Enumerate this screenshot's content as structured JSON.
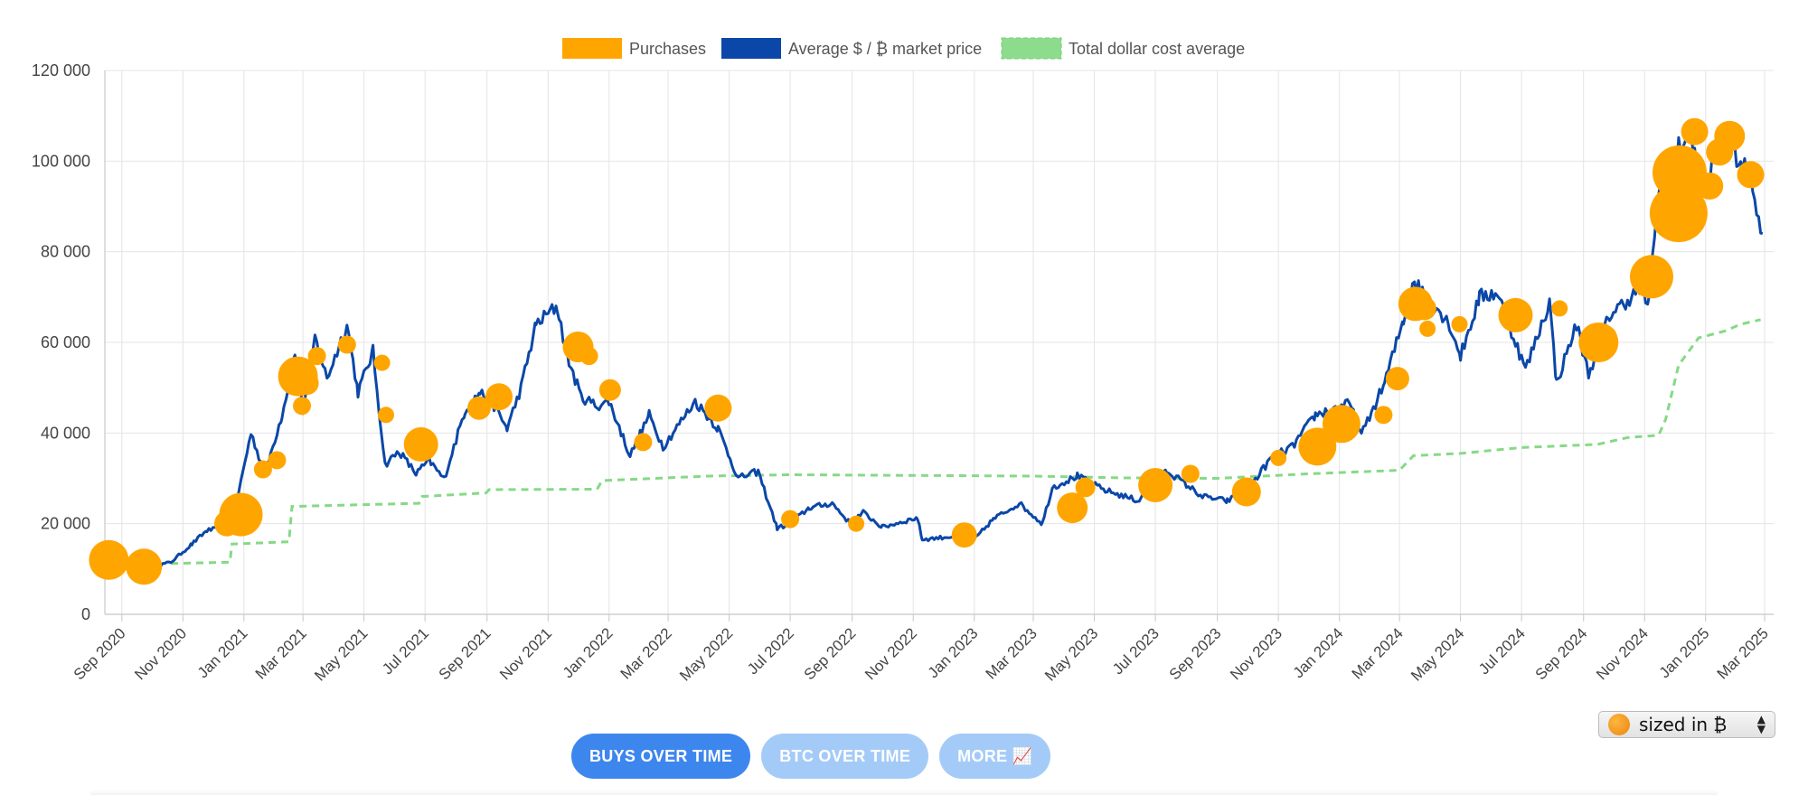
{
  "chart_data": {
    "type": "line",
    "title": "",
    "xlabel": "",
    "ylabel": "",
    "x_range": [
      "2020-08-15",
      "2025-03-10"
    ],
    "ylim": [
      0,
      120000
    ],
    "y_ticks": [
      0,
      20000,
      40000,
      60000,
      80000,
      100000,
      120000
    ],
    "y_tick_labels": [
      "0",
      "20 000",
      "40 000",
      "60 000",
      "80 000",
      "100 000",
      "120 000"
    ],
    "x_ticks": [
      "2020-09-01",
      "2020-11-01",
      "2021-01-01",
      "2021-03-01",
      "2021-05-01",
      "2021-07-01",
      "2021-09-01",
      "2021-11-01",
      "2022-01-01",
      "2022-03-01",
      "2022-05-01",
      "2022-07-01",
      "2022-09-01",
      "2022-11-01",
      "2023-01-01",
      "2023-03-01",
      "2023-05-01",
      "2023-07-01",
      "2023-09-01",
      "2023-11-01",
      "2024-01-01",
      "2024-03-01",
      "2024-05-01",
      "2024-07-01",
      "2024-09-01",
      "2024-11-01",
      "2025-01-01",
      "2025-03-01"
    ],
    "x_tick_labels": [
      "Sep 2020",
      "Nov 2020",
      "Jan 2021",
      "Mar 2021",
      "May 2021",
      "Jul 2021",
      "Sep 2021",
      "Nov 2021",
      "Jan 2022",
      "Mar 2022",
      "May 2022",
      "Jul 2022",
      "Sep 2022",
      "Nov 2022",
      "Jan 2023",
      "Mar 2023",
      "May 2023",
      "Jul 2023",
      "Sep 2023",
      "Nov 2023",
      "Jan 2024",
      "Mar 2024",
      "May 2024",
      "Jul 2024",
      "Sep 2024",
      "Nov 2024",
      "Jan 2025",
      "Mar 2025"
    ],
    "grid": true,
    "legend_position": "top-center",
    "series": [
      {
        "name": "Average $ / ₿ market price",
        "kind": "line",
        "color": "#0a47a8",
        "points": [
          [
            "2020-09-30",
            10500
          ],
          [
            "2020-10-20",
            11500
          ],
          [
            "2020-11-10",
            15500
          ],
          [
            "2020-11-25",
            18500
          ],
          [
            "2020-12-10",
            19000
          ],
          [
            "2020-12-25",
            25000
          ],
          [
            "2021-01-08",
            40000
          ],
          [
            "2021-01-22",
            31000
          ],
          [
            "2021-02-08",
            44000
          ],
          [
            "2021-02-21",
            57000
          ],
          [
            "2021-03-01",
            45000
          ],
          [
            "2021-03-13",
            61000
          ],
          [
            "2021-03-25",
            52000
          ],
          [
            "2021-04-14",
            64000
          ],
          [
            "2021-04-25",
            49000
          ],
          [
            "2021-05-10",
            58000
          ],
          [
            "2021-05-22",
            33000
          ],
          [
            "2021-06-05",
            36000
          ],
          [
            "2021-06-22",
            31000
          ],
          [
            "2021-07-05",
            34000
          ],
          [
            "2021-07-20",
            29800
          ],
          [
            "2021-08-10",
            45000
          ],
          [
            "2021-08-25",
            49000
          ],
          [
            "2021-09-08",
            46000
          ],
          [
            "2021-09-21",
            41000
          ],
          [
            "2021-10-05",
            50000
          ],
          [
            "2021-10-20",
            64000
          ],
          [
            "2021-11-10",
            68000
          ],
          [
            "2021-11-20",
            57000
          ],
          [
            "2021-12-04",
            48000
          ],
          [
            "2021-12-20",
            46000
          ],
          [
            "2022-01-01",
            47000
          ],
          [
            "2022-01-22",
            35000
          ],
          [
            "2022-02-10",
            44000
          ],
          [
            "2022-02-24",
            37000
          ],
          [
            "2022-03-28",
            47000
          ],
          [
            "2022-04-20",
            41000
          ],
          [
            "2022-05-10",
            30000
          ],
          [
            "2022-05-30",
            31500
          ],
          [
            "2022-06-18",
            19000
          ],
          [
            "2022-07-01",
            20000
          ],
          [
            "2022-07-20",
            23500
          ],
          [
            "2022-08-12",
            24500
          ],
          [
            "2022-08-30",
            20000
          ],
          [
            "2022-09-12",
            22500
          ],
          [
            "2022-10-01",
            19200
          ],
          [
            "2022-11-05",
            21300
          ],
          [
            "2022-11-10",
            16500
          ],
          [
            "2022-12-15",
            17300
          ],
          [
            "2023-01-01",
            16500
          ],
          [
            "2023-01-20",
            21000
          ],
          [
            "2023-02-15",
            24500
          ],
          [
            "2023-03-10",
            20000
          ],
          [
            "2023-03-20",
            28000
          ],
          [
            "2023-04-14",
            30500
          ],
          [
            "2023-05-10",
            27500
          ],
          [
            "2023-06-15",
            25000
          ],
          [
            "2023-06-25",
            30500
          ],
          [
            "2023-07-14",
            31500
          ],
          [
            "2023-08-17",
            26000
          ],
          [
            "2023-09-11",
            25000
          ],
          [
            "2023-10-01",
            27500
          ],
          [
            "2023-10-25",
            34500
          ],
          [
            "2023-11-15",
            37000
          ],
          [
            "2023-12-08",
            44000
          ],
          [
            "2024-01-11",
            46500
          ],
          [
            "2024-01-23",
            39500
          ],
          [
            "2024-02-15",
            51000
          ],
          [
            "2024-03-05",
            65000
          ],
          [
            "2024-03-14",
            73500
          ],
          [
            "2024-04-01",
            69500
          ],
          [
            "2024-04-20",
            64000
          ],
          [
            "2024-05-01",
            57000
          ],
          [
            "2024-05-20",
            70000
          ],
          [
            "2024-06-07",
            71000
          ],
          [
            "2024-07-05",
            54000
          ],
          [
            "2024-07-29",
            69000
          ],
          [
            "2024-08-05",
            51000
          ],
          [
            "2024-08-25",
            64000
          ],
          [
            "2024-09-06",
            53000
          ],
          [
            "2024-09-27",
            66000
          ],
          [
            "2024-10-29",
            72000
          ],
          [
            "2024-11-05",
            68000
          ],
          [
            "2024-11-13",
            90000
          ],
          [
            "2024-11-22",
            99000
          ],
          [
            "2024-12-05",
            103000
          ],
          [
            "2024-12-17",
            107000
          ],
          [
            "2024-12-30",
            93000
          ],
          [
            "2025-01-20",
            106000
          ],
          [
            "2025-02-01",
            101000
          ],
          [
            "2025-02-15",
            96000
          ],
          [
            "2025-02-27",
            84000
          ]
        ]
      },
      {
        "name": "Total dollar cost average",
        "kind": "dashed-line",
        "color": "#86d986",
        "points": [
          [
            "2020-10-20",
            11200
          ],
          [
            "2020-12-18",
            11500
          ],
          [
            "2020-12-20",
            15500
          ],
          [
            "2021-02-15",
            16000
          ],
          [
            "2021-02-18",
            23800
          ],
          [
            "2021-06-25",
            24500
          ],
          [
            "2021-06-28",
            26000
          ],
          [
            "2021-08-31",
            26800
          ],
          [
            "2021-09-03",
            27500
          ],
          [
            "2021-12-20",
            27600
          ],
          [
            "2021-12-25",
            29500
          ],
          [
            "2022-04-10",
            30500
          ],
          [
            "2022-07-01",
            30800
          ],
          [
            "2023-03-01",
            30500
          ],
          [
            "2023-06-01",
            30100
          ],
          [
            "2023-09-01",
            30000
          ],
          [
            "2023-12-01",
            31000
          ],
          [
            "2024-03-01",
            31800
          ],
          [
            "2024-03-15",
            35000
          ],
          [
            "2024-05-01",
            35500
          ],
          [
            "2024-07-01",
            36800
          ],
          [
            "2024-09-15",
            37500
          ],
          [
            "2024-10-15",
            39000
          ],
          [
            "2024-11-15",
            39500
          ],
          [
            "2024-11-22",
            43000
          ],
          [
            "2024-12-05",
            55000
          ],
          [
            "2024-12-25",
            61000
          ],
          [
            "2025-01-20",
            62500
          ],
          [
            "2025-02-05",
            64000
          ],
          [
            "2025-02-25",
            65000
          ]
        ]
      },
      {
        "name": "Purchases",
        "kind": "bubble",
        "color": "#ffa500",
        "points": [
          [
            "2020-08-19",
            12000,
            22
          ],
          [
            "2020-09-23",
            10500,
            20
          ],
          [
            "2020-12-15",
            20000,
            14
          ],
          [
            "2020-12-29",
            22000,
            24
          ],
          [
            "2021-01-20",
            32000,
            10
          ],
          [
            "2021-02-03",
            34000,
            10
          ],
          [
            "2021-02-24",
            52500,
            22
          ],
          [
            "2021-02-28",
            46000,
            10
          ],
          [
            "2021-03-05",
            51000,
            13
          ],
          [
            "2021-03-15",
            57000,
            10
          ],
          [
            "2021-04-14",
            59500,
            10
          ],
          [
            "2021-05-19",
            55500,
            9
          ],
          [
            "2021-05-23",
            44000,
            9
          ],
          [
            "2021-06-27",
            37500,
            19
          ],
          [
            "2021-08-24",
            45500,
            13
          ],
          [
            "2021-09-13",
            48000,
            15
          ],
          [
            "2021-12-01",
            59000,
            17
          ],
          [
            "2021-12-12",
            57000,
            10
          ],
          [
            "2022-01-02",
            49500,
            12
          ],
          [
            "2022-02-04",
            38000,
            10
          ],
          [
            "2022-04-20",
            45500,
            15
          ],
          [
            "2022-07-01",
            21000,
            10
          ],
          [
            "2022-09-05",
            20000,
            9
          ],
          [
            "2022-12-22",
            17500,
            14
          ],
          [
            "2023-04-09",
            23500,
            17
          ],
          [
            "2023-04-22",
            28000,
            11
          ],
          [
            "2023-07-01",
            28500,
            19
          ],
          [
            "2023-08-05",
            31000,
            10
          ],
          [
            "2023-09-30",
            27000,
            16
          ],
          [
            "2023-11-01",
            34500,
            9
          ],
          [
            "2023-12-10",
            37000,
            21
          ],
          [
            "2024-01-03",
            42000,
            21
          ],
          [
            "2024-02-14",
            44000,
            10
          ],
          [
            "2024-02-28",
            52000,
            13
          ],
          [
            "2024-03-17",
            68500,
            19
          ],
          [
            "2024-03-26",
            67500,
            13
          ],
          [
            "2024-03-29",
            63000,
            9
          ],
          [
            "2024-04-30",
            64000,
            9
          ],
          [
            "2024-06-25",
            66000,
            19
          ],
          [
            "2024-08-08",
            67500,
            9
          ],
          [
            "2024-09-16",
            60000,
            22
          ],
          [
            "2024-09-22",
            61000,
            14
          ],
          [
            "2024-11-08",
            74500,
            24
          ],
          [
            "2024-12-05",
            88500,
            32
          ],
          [
            "2024-12-06",
            97500,
            30
          ],
          [
            "2024-12-21",
            106500,
            15
          ],
          [
            "2025-01-05",
            94500,
            15
          ],
          [
            "2025-01-15",
            102000,
            15
          ],
          [
            "2025-01-25",
            105500,
            17
          ],
          [
            "2025-02-15",
            97000,
            15
          ]
        ]
      }
    ]
  },
  "legend": {
    "items": [
      {
        "label": "Purchases",
        "color": "#ffa500"
      },
      {
        "label": "Average $ / ₿ market price",
        "color": "#0a47a8"
      },
      {
        "label": "Total dollar cost average",
        "color": "#86d986"
      }
    ]
  },
  "tabs": {
    "buys": "BUYS OVER TIME",
    "btc": "BTC OVER TIME",
    "more": "MORE 📈"
  },
  "size_select": {
    "value": "sized in ₿"
  }
}
